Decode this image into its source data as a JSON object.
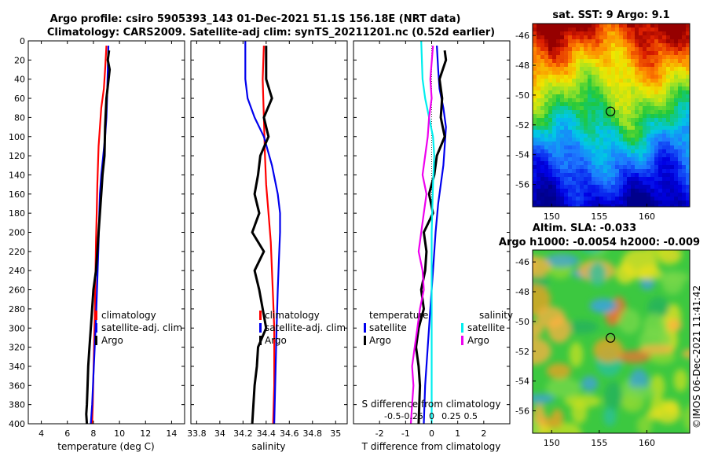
{
  "title": {
    "line1": "Argo profile: csiro 5905393_143 01-Dec-2021 51.1S 156.18E (NRT data)",
    "line2": "Climatology: CARS2009. Satellite-adj clim: synTS_20211201.nc (0.52d earlier)"
  },
  "colors": {
    "climatology": "#ff0000",
    "satellite": "#0000ee",
    "argo": "#000000",
    "salinity_diff": "#ee00ee",
    "satellite_s_diff": "#00eeee",
    "zero_line": "#333333"
  },
  "chart_data": [
    {
      "id": "temperature",
      "type": "line",
      "xlabel": "temperature (deg C)",
      "xlim": [
        3,
        15
      ],
      "ylim": [
        400,
        0
      ],
      "xticks": [
        "4",
        "6",
        "8",
        "10",
        "12",
        "14"
      ],
      "xtick_values": [
        4,
        6,
        8,
        10,
        12,
        14
      ],
      "yticks": [
        "0",
        "20",
        "40",
        "60",
        "80",
        "100",
        "120",
        "140",
        "160",
        "180",
        "200",
        "220",
        "240",
        "260",
        "280",
        "300",
        "320",
        "340",
        "360",
        "380",
        "400"
      ],
      "ytick_values": [
        0,
        20,
        40,
        60,
        80,
        100,
        120,
        140,
        160,
        180,
        200,
        220,
        240,
        260,
        280,
        300,
        320,
        340,
        360,
        380,
        400
      ],
      "series": [
        {
          "name": "climatology",
          "color_key": "climatology",
          "x": [
            9.0,
            8.9,
            8.8,
            8.6,
            8.5,
            8.4,
            8.35,
            8.3,
            8.25,
            8.2,
            8.15,
            8.1,
            8.05,
            8.0,
            7.95,
            7.9
          ],
          "y": [
            5,
            30,
            50,
            70,
            90,
            110,
            130,
            150,
            180,
            210,
            250,
            290,
            320,
            350,
            380,
            400
          ]
        },
        {
          "name": "satellite-adj. clim",
          "color_key": "satellite",
          "x": [
            9.15,
            9.1,
            9.05,
            9.0,
            8.9,
            8.75,
            8.6,
            8.5,
            8.45,
            8.4,
            8.3,
            8.2,
            8.1,
            8.0,
            7.9,
            7.8
          ],
          "y": [
            5,
            30,
            60,
            80,
            100,
            120,
            140,
            160,
            180,
            210,
            250,
            290,
            320,
            350,
            380,
            400
          ]
        },
        {
          "name": "Argo",
          "color_key": "argo",
          "x": [
            9.2,
            9.1,
            9.25,
            9.0,
            8.9,
            8.85,
            8.7,
            8.6,
            8.5,
            8.4,
            8.3,
            8.2,
            8.0,
            7.9,
            7.8,
            7.7,
            7.6,
            7.55,
            7.5,
            7.45,
            7.5
          ],
          "y": [
            10,
            20,
            30,
            60,
            90,
            120,
            140,
            160,
            180,
            200,
            220,
            240,
            260,
            280,
            300,
            320,
            340,
            360,
            380,
            390,
            400
          ]
        }
      ]
    },
    {
      "id": "salinity",
      "type": "line",
      "xlabel": "salinity",
      "xlim": [
        33.75,
        35.1
      ],
      "ylim": [
        400,
        0
      ],
      "xticks": [
        "33.8",
        "34",
        "34.2",
        "34.4",
        "34.6",
        "34.8",
        "35"
      ],
      "xtick_values": [
        33.8,
        34,
        34.2,
        34.4,
        34.6,
        34.8,
        35
      ],
      "series": [
        {
          "name": "climatology",
          "color_key": "climatology",
          "x": [
            34.38,
            34.37,
            34.38,
            34.39,
            34.4,
            34.42,
            34.44,
            34.45,
            34.46,
            34.47,
            34.47,
            34.47,
            34.46
          ],
          "y": [
            5,
            40,
            80,
            120,
            150,
            180,
            210,
            240,
            270,
            300,
            330,
            360,
            400
          ]
        },
        {
          "name": "satellite-adj. clim",
          "color_key": "satellite",
          "x": [
            34.22,
            34.22,
            34.24,
            34.3,
            34.38,
            34.45,
            34.5,
            34.52,
            34.52,
            34.51,
            34.5,
            34.49,
            34.48,
            34.47
          ],
          "y": [
            0,
            40,
            60,
            80,
            100,
            130,
            160,
            180,
            200,
            230,
            260,
            300,
            350,
            400
          ]
        },
        {
          "name": "Argo",
          "color_key": "argo",
          "x": [
            34.4,
            34.4,
            34.45,
            34.38,
            34.42,
            34.35,
            34.33,
            34.3,
            34.34,
            34.28,
            34.38,
            34.3,
            34.34,
            34.37,
            34.4,
            34.33,
            34.32,
            34.3,
            34.29,
            34.28
          ],
          "y": [
            5,
            40,
            60,
            80,
            100,
            120,
            140,
            160,
            180,
            200,
            220,
            240,
            260,
            280,
            300,
            320,
            340,
            360,
            380,
            400
          ]
        }
      ]
    },
    {
      "id": "difference",
      "type": "line",
      "xlabel": "T difference from climatology",
      "xlim": [
        -3,
        3
      ],
      "ylim": [
        400,
        0
      ],
      "xticks": [
        "-2",
        "-1",
        "0",
        "1",
        "2"
      ],
      "xtick_values": [
        -2,
        -1,
        0,
        1,
        2
      ],
      "top_axis_label": "S difference from climatology",
      "top_ticks": [
        "-0.5",
        "-0.25",
        "0",
        "0.25",
        "0.5"
      ],
      "top_tick_values": [
        -1.5,
        -0.75,
        0,
        0.75,
        1.5
      ],
      "series": [
        {
          "name": "satellite (temperature)",
          "color_key": "satellite",
          "x": [
            0.2,
            0.25,
            0.3,
            0.45,
            0.55,
            0.5,
            0.45,
            0.35,
            0.25,
            0.15,
            0.05,
            -0.05,
            -0.15,
            -0.25,
            -0.3
          ],
          "y": [
            5,
            30,
            50,
            70,
            90,
            110,
            130,
            150,
            170,
            200,
            240,
            280,
            320,
            360,
            400
          ]
        },
        {
          "name": "Argo (temperature)",
          "color_key": "argo",
          "x": [
            0.5,
            0.55,
            0.3,
            0.4,
            0.35,
            0.5,
            0.2,
            0.1,
            -0.1,
            0.05,
            -0.3,
            -0.2,
            -0.25,
            -0.4,
            -0.3,
            -0.5,
            -0.6,
            -0.5,
            -0.45,
            -0.5
          ],
          "y": [
            10,
            20,
            40,
            60,
            80,
            100,
            120,
            140,
            160,
            180,
            200,
            220,
            240,
            260,
            280,
            300,
            320,
            340,
            360,
            400
          ]
        },
        {
          "name": "satellite (salinity)",
          "color_key": "satellite_s_diff",
          "x": [
            -0.4,
            -0.35,
            -0.25,
            -0.1,
            0.05,
            0.1,
            0.05,
            0.0,
            0.0,
            0.0,
            0.0
          ],
          "y": [
            0,
            40,
            60,
            80,
            100,
            120,
            150,
            200,
            250,
            300,
            400
          ]
        },
        {
          "name": "Argo (salinity)",
          "color_key": "salinity_diff",
          "x": [
            0.05,
            -0.05,
            0.0,
            -0.1,
            -0.15,
            -0.25,
            -0.35,
            -0.2,
            -0.3,
            -0.4,
            -0.5,
            -0.35,
            -0.3,
            -0.45,
            -0.55,
            -0.65,
            -0.75,
            -0.7,
            -0.75,
            -0.8
          ],
          "y": [
            5,
            40,
            60,
            80,
            100,
            120,
            140,
            160,
            180,
            200,
            220,
            240,
            260,
            280,
            300,
            320,
            340,
            360,
            380,
            400
          ]
        }
      ]
    },
    {
      "id": "sst_map",
      "type": "heatmap",
      "title": "sat. SST: 9 Argo: 9.1",
      "xlim": [
        148,
        164.5
      ],
      "ylim": [
        -57.5,
        -45.2
      ],
      "xticks": [
        "150",
        "155",
        "160"
      ],
      "xtick_values": [
        150,
        155,
        160
      ],
      "yticks": [
        "-46",
        "-48",
        "-50",
        "-52",
        "-54",
        "-56"
      ],
      "ytick_values": [
        -46,
        -48,
        -50,
        -52,
        -54,
        -56
      ],
      "marker": {
        "lon": 156.18,
        "lat": -51.1
      }
    },
    {
      "id": "sla_map",
      "type": "heatmap",
      "title_line1": "Altim. SLA: -0.033",
      "title_line2": "Argo h1000: -0.0054 h2000: -0.009",
      "xlim": [
        148,
        164.5
      ],
      "ylim": [
        -57.5,
        -45.2
      ],
      "xticks": [
        "150",
        "155",
        "160"
      ],
      "xtick_values": [
        150,
        155,
        160
      ],
      "yticks": [
        "-46",
        "-48",
        "-50",
        "-52",
        "-54",
        "-56"
      ],
      "ytick_values": [
        -46,
        -48,
        -50,
        -52,
        -54,
        -56
      ],
      "marker": {
        "lon": 156.18,
        "lat": -51.1
      }
    }
  ],
  "legend_profiles": [
    "climatology",
    "satellite-adj. clim",
    "Argo"
  ],
  "legend_diff": {
    "temperature_header": "temperature",
    "salinity_header": "salinity",
    "items_t": [
      "satellite",
      "Argo"
    ],
    "items_s": [
      "satellite",
      "Argo"
    ]
  },
  "credit": "©IMOS 06-Dec-2021 11:41:42"
}
